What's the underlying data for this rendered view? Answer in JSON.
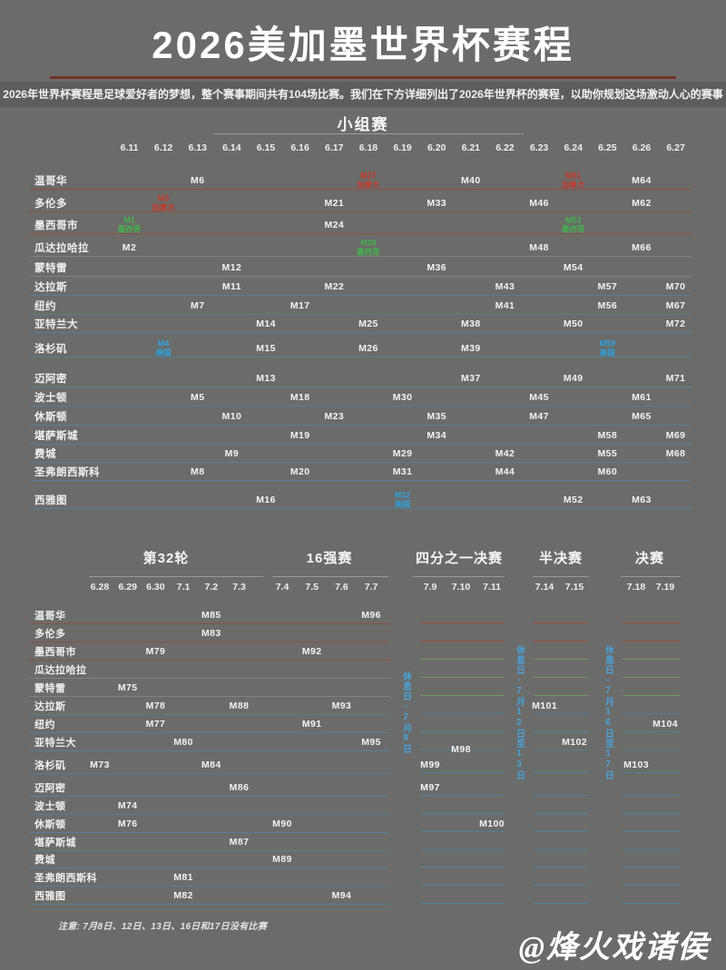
{
  "title": "2026美加墨世界杯赛程",
  "subtitle": "2026年世界杯赛程是足球爱好者的梦想，整个赛事期间共有104场比赛。我们在下方详细列出了2026年世界杯的赛程，以助你规划这场激动人心的赛事",
  "footnote": "注意: 7月8日、12日、13日、16日和17日没有比赛",
  "watermark": "@烽火戏诸侯",
  "colors": {
    "background": "#6b6b69",
    "mexico_green": "#44b14f",
    "canada_red": "#c4392b",
    "usa_blue": "#2ea2dc",
    "rest_day_blue": "#4aa2d9",
    "divider_red": "#713429"
  },
  "cities": [
    "温哥华",
    "多伦多",
    "墨西哥市",
    "瓜达拉哈拉",
    "蒙特雷",
    "达拉斯",
    "纽约",
    "亚特兰大",
    "洛杉矶",
    "迈阿密",
    "波士顿",
    "休斯顿",
    "堪萨斯城",
    "费城",
    "圣弗朗西斯科",
    "西雅图"
  ],
  "chart_data": {
    "type": "table",
    "title": "2026美加墨世界杯赛程",
    "group_stage": {
      "heading": "小组赛",
      "dates": [
        "6.11",
        "6.12",
        "6.13",
        "6.14",
        "6.15",
        "6.16",
        "6.17",
        "6.18",
        "6.19",
        "6.20",
        "6.21",
        "6.22",
        "6.23",
        "6.24",
        "6.25",
        "6.26",
        "6.27"
      ],
      "matches": [
        {
          "m": "M6",
          "city": "温哥华",
          "date": "6.13"
        },
        {
          "m": "M27",
          "city": "温哥华",
          "date": "6.18",
          "team": "加拿大",
          "highlight": "canada_red"
        },
        {
          "m": "M40",
          "city": "温哥华",
          "date": "6.21"
        },
        {
          "m": "M51",
          "city": "温哥华",
          "date": "6.24",
          "team": "加拿大",
          "highlight": "canada_red"
        },
        {
          "m": "M64",
          "city": "温哥华",
          "date": "6.26"
        },
        {
          "m": "M3",
          "city": "多伦多",
          "date": "6.12",
          "team": "加拿大",
          "highlight": "canada_red"
        },
        {
          "m": "M21",
          "city": "多伦多",
          "date": "6.17"
        },
        {
          "m": "M33",
          "city": "多伦多",
          "date": "6.20"
        },
        {
          "m": "M46",
          "city": "多伦多",
          "date": "6.23"
        },
        {
          "m": "M62",
          "city": "多伦多",
          "date": "6.26"
        },
        {
          "m": "M1",
          "city": "墨西哥市",
          "date": "6.11",
          "team": "墨西哥",
          "highlight": "mexico_green"
        },
        {
          "m": "M24",
          "city": "墨西哥市",
          "date": "6.17"
        },
        {
          "m": "M53",
          "city": "墨西哥市",
          "date": "6.24",
          "team": "墨西哥",
          "highlight": "mexico_green"
        },
        {
          "m": "M2",
          "city": "瓜达拉哈拉",
          "date": "6.11"
        },
        {
          "m": "M28",
          "city": "瓜达拉哈拉",
          "date": "6.18",
          "team": "墨西哥",
          "highlight": "mexico_green"
        },
        {
          "m": "M48",
          "city": "瓜达拉哈拉",
          "date": "6.23"
        },
        {
          "m": "M66",
          "city": "瓜达拉哈拉",
          "date": "6.26"
        },
        {
          "m": "M12",
          "city": "蒙特雷",
          "date": "6.14"
        },
        {
          "m": "M36",
          "city": "蒙特雷",
          "date": "6.20"
        },
        {
          "m": "M54",
          "city": "蒙特雷",
          "date": "6.24"
        },
        {
          "m": "M11",
          "city": "达拉斯",
          "date": "6.14"
        },
        {
          "m": "M22",
          "city": "达拉斯",
          "date": "6.17"
        },
        {
          "m": "M43",
          "city": "达拉斯",
          "date": "6.22"
        },
        {
          "m": "M57",
          "city": "达拉斯",
          "date": "6.25"
        },
        {
          "m": "M70",
          "city": "达拉斯",
          "date": "6.27"
        },
        {
          "m": "M7",
          "city": "纽约",
          "date": "6.13"
        },
        {
          "m": "M17",
          "city": "纽约",
          "date": "6.16"
        },
        {
          "m": "M41",
          "city": "纽约",
          "date": "6.22"
        },
        {
          "m": "M56",
          "city": "纽约",
          "date": "6.25"
        },
        {
          "m": "M67",
          "city": "纽约",
          "date": "6.27"
        },
        {
          "m": "M14",
          "city": "亚特兰大",
          "date": "6.15"
        },
        {
          "m": "M25",
          "city": "亚特兰大",
          "date": "6.18"
        },
        {
          "m": "M38",
          "city": "亚特兰大",
          "date": "6.21"
        },
        {
          "m": "M50",
          "city": "亚特兰大",
          "date": "6.24"
        },
        {
          "m": "M72",
          "city": "亚特兰大",
          "date": "6.27"
        },
        {
          "m": "M4",
          "city": "洛杉矶",
          "date": "6.12",
          "team": "美国",
          "highlight": "usa_blue"
        },
        {
          "m": "M15",
          "city": "洛杉矶",
          "date": "6.15"
        },
        {
          "m": "M26",
          "city": "洛杉矶",
          "date": "6.18"
        },
        {
          "m": "M39",
          "city": "洛杉矶",
          "date": "6.21"
        },
        {
          "m": "M59",
          "city": "洛杉矶",
          "date": "6.25",
          "team": "美国",
          "highlight": "usa_blue"
        },
        {
          "m": "M13",
          "city": "迈阿密",
          "date": "6.15"
        },
        {
          "m": "M37",
          "city": "迈阿密",
          "date": "6.21"
        },
        {
          "m": "M49",
          "city": "迈阿密",
          "date": "6.24"
        },
        {
          "m": "M71",
          "city": "迈阿密",
          "date": "6.27"
        },
        {
          "m": "M5",
          "city": "波士顿",
          "date": "6.13"
        },
        {
          "m": "M18",
          "city": "波士顿",
          "date": "6.16"
        },
        {
          "m": "M30",
          "city": "波士顿",
          "date": "6.19"
        },
        {
          "m": "M45",
          "city": "波士顿",
          "date": "6.23"
        },
        {
          "m": "M61",
          "city": "波士顿",
          "date": "6.26"
        },
        {
          "m": "M10",
          "city": "休斯顿",
          "date": "6.14"
        },
        {
          "m": "M23",
          "city": "休斯顿",
          "date": "6.17"
        },
        {
          "m": "M35",
          "city": "休斯顿",
          "date": "6.20"
        },
        {
          "m": "M47",
          "city": "休斯顿",
          "date": "6.23"
        },
        {
          "m": "M65",
          "city": "休斯顿",
          "date": "6.26"
        },
        {
          "m": "M19",
          "city": "堪萨斯城",
          "date": "6.16"
        },
        {
          "m": "M34",
          "city": "堪萨斯城",
          "date": "6.20"
        },
        {
          "m": "M58",
          "city": "堪萨斯城",
          "date": "6.25"
        },
        {
          "m": "M69",
          "city": "堪萨斯城",
          "date": "6.27"
        },
        {
          "m": "M9",
          "city": "费城",
          "date": "6.14"
        },
        {
          "m": "M29",
          "city": "费城",
          "date": "6.19"
        },
        {
          "m": "M42",
          "city": "费城",
          "date": "6.22"
        },
        {
          "m": "M55",
          "city": "费城",
          "date": "6.25"
        },
        {
          "m": "M68",
          "city": "费城",
          "date": "6.27"
        },
        {
          "m": "M8",
          "city": "圣弗朗西斯科",
          "date": "6.13"
        },
        {
          "m": "M20",
          "city": "圣弗朗西斯科",
          "date": "6.16"
        },
        {
          "m": "M31",
          "city": "圣弗朗西斯科",
          "date": "6.19"
        },
        {
          "m": "M44",
          "city": "圣弗朗西斯科",
          "date": "6.22"
        },
        {
          "m": "M60",
          "city": "圣弗朗西斯科",
          "date": "6.25"
        },
        {
          "m": "M16",
          "city": "西雅图",
          "date": "6.15"
        },
        {
          "m": "M32",
          "city": "西雅图",
          "date": "6.19",
          "team": "美国",
          "highlight": "usa_blue"
        },
        {
          "m": "M52",
          "city": "西雅图",
          "date": "6.24"
        },
        {
          "m": "M63",
          "city": "西雅图",
          "date": "6.26"
        }
      ]
    },
    "knockout": {
      "stages": [
        {
          "label": "第32轮",
          "dates": [
            "6.28",
            "6.29",
            "6.30",
            "7.1",
            "7.2",
            "7.3"
          ]
        },
        {
          "label": "16强赛",
          "dates": [
            "7.4",
            "7.5",
            "7.6",
            "7.7"
          ]
        },
        {
          "label": "四分之一决赛",
          "dates": [
            "7.9",
            "7.10",
            "7.11"
          ]
        },
        {
          "label": "半决赛",
          "dates": [
            "7.14",
            "7.15"
          ]
        },
        {
          "label": "决赛",
          "dates": [
            "7.18",
            "7.19"
          ]
        }
      ],
      "rest_days": [
        "休息日-7月8日",
        "休息日-7月12日至13日",
        "休息日-7月16日至17日"
      ],
      "matches": [
        {
          "m": "M73",
          "city": "洛杉矶",
          "date": "6.28"
        },
        {
          "m": "M74",
          "city": "波士顿",
          "date": "6.29"
        },
        {
          "m": "M75",
          "city": "蒙特雷",
          "date": "6.29"
        },
        {
          "m": "M76",
          "city": "休斯顿",
          "date": "6.29"
        },
        {
          "m": "M77",
          "city": "纽约",
          "date": "6.30"
        },
        {
          "m": "M78",
          "city": "达拉斯",
          "date": "6.30"
        },
        {
          "m": "M79",
          "city": "墨西哥市",
          "date": "6.30"
        },
        {
          "m": "M80",
          "city": "亚特兰大",
          "date": "7.1"
        },
        {
          "m": "M81",
          "city": "圣弗朗西斯科",
          "date": "7.1"
        },
        {
          "m": "M82",
          "city": "西雅图",
          "date": "7.1"
        },
        {
          "m": "M83",
          "city": "多伦多",
          "date": "7.2"
        },
        {
          "m": "M84",
          "city": "洛杉矶",
          "date": "7.2"
        },
        {
          "m": "M85",
          "city": "温哥华",
          "date": "7.2"
        },
        {
          "m": "M86",
          "city": "迈阿密",
          "date": "7.3"
        },
        {
          "m": "M87",
          "city": "堪萨斯城",
          "date": "7.3"
        },
        {
          "m": "M88",
          "city": "达拉斯",
          "date": "7.3"
        },
        {
          "m": "M89",
          "city": "费城",
          "date": "7.4"
        },
        {
          "m": "M90",
          "city": "休斯顿",
          "date": "7.4"
        },
        {
          "m": "M91",
          "city": "纽约",
          "date": "7.5"
        },
        {
          "m": "M92",
          "city": "墨西哥市",
          "date": "7.5"
        },
        {
          "m": "M93",
          "city": "达拉斯",
          "date": "7.6"
        },
        {
          "m": "M94",
          "city": "西雅图",
          "date": "7.6"
        },
        {
          "m": "M95",
          "city": "亚特兰大",
          "date": "7.7"
        },
        {
          "m": "M96",
          "city": "温哥华",
          "date": "7.7"
        },
        {
          "m": "M97",
          "city": "迈阿密",
          "date": "7.9"
        },
        {
          "m": "M99",
          "city": "洛杉矶",
          "date": "7.9"
        },
        {
          "m": "M98",
          "city": "亚特兰大",
          "date": "7.10"
        },
        {
          "m": "M100",
          "city": "休斯顿",
          "date": "7.11"
        },
        {
          "m": "M101",
          "city": "达拉斯",
          "date": "7.14"
        },
        {
          "m": "M102",
          "city": "亚特兰大",
          "date": "7.15"
        },
        {
          "m": "M103",
          "city": "洛杉矶",
          "date": "7.18"
        },
        {
          "m": "M104",
          "city": "纽约",
          "date": "7.19"
        }
      ]
    }
  }
}
